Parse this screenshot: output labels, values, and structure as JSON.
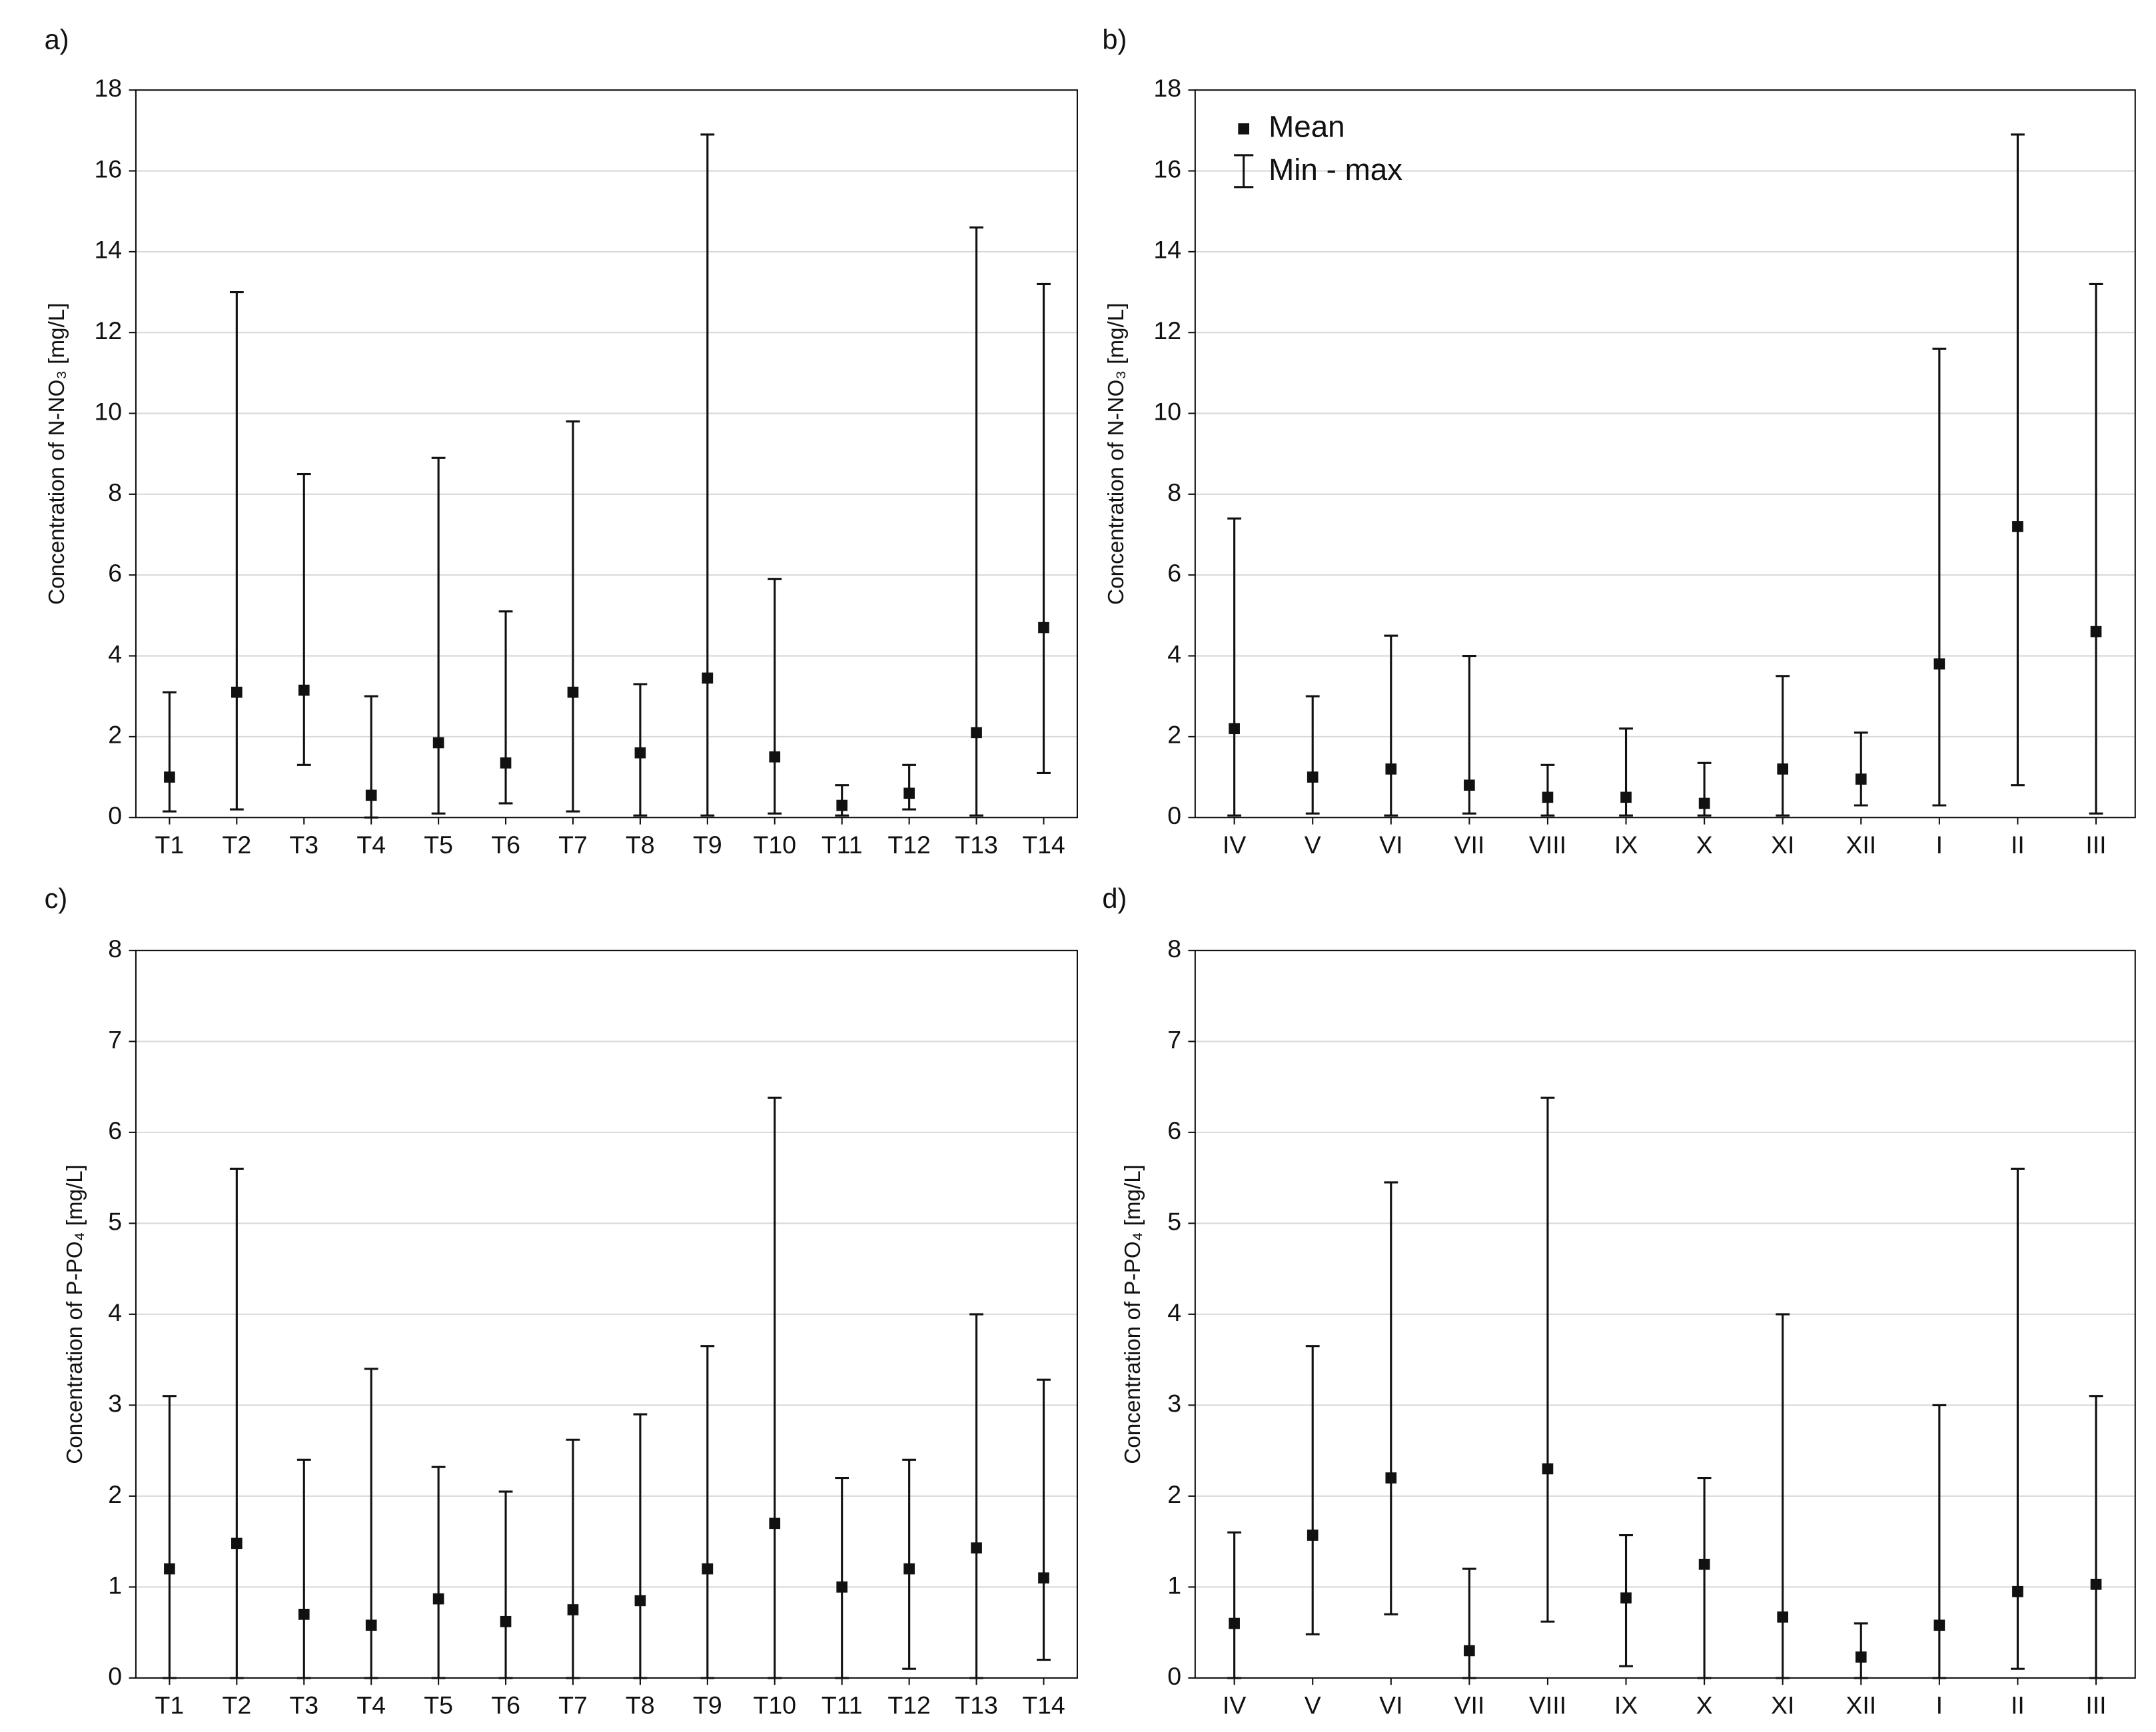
{
  "chart_data": [
    {
      "type": "errorbar",
      "panel_label": "a)",
      "ylabel": "Concentration of N-NO₃ [mg/L]",
      "categories": [
        "T1",
        "T2",
        "T3",
        "T4",
        "T5",
        "T6",
        "T7",
        "T8",
        "T9",
        "T10",
        "T11",
        "T12",
        "T13",
        "T14"
      ],
      "values": [
        1.0,
        3.1,
        3.15,
        0.55,
        1.85,
        1.35,
        3.1,
        1.6,
        3.45,
        1.5,
        0.3,
        0.6,
        2.1,
        4.7
      ],
      "min": [
        0.15,
        0.2,
        1.3,
        0,
        0.1,
        0.35,
        0.15,
        0.05,
        0.05,
        0.1,
        0.05,
        0.2,
        0.05,
        1.1
      ],
      "max": [
        3.1,
        13.0,
        8.5,
        3.0,
        8.9,
        5.1,
        9.8,
        3.3,
        16.9,
        5.9,
        0.8,
        1.3,
        14.6,
        13.2
      ],
      "ylim": [
        0,
        18
      ],
      "yticks": [
        0,
        2,
        4,
        6,
        8,
        10,
        12,
        14,
        16,
        18
      ],
      "grid": true,
      "color": "#111111"
    },
    {
      "type": "errorbar",
      "panel_label": "b)",
      "ylabel": "Concentration of N-NO₃ [mg/L]",
      "categories": [
        "IV",
        "V",
        "VI",
        "VII",
        "VIII",
        "IX",
        "X",
        "XI",
        "XII",
        "I",
        "II",
        "III"
      ],
      "values": [
        2.2,
        1.0,
        1.2,
        0.8,
        0.5,
        0.5,
        0.35,
        1.2,
        0.95,
        3.8,
        7.2,
        4.6
      ],
      "min": [
        0.05,
        0.1,
        0.05,
        0.1,
        0.05,
        0.05,
        0.05,
        0.05,
        0.3,
        0.3,
        0.8,
        0.1
      ],
      "max": [
        7.4,
        3.0,
        4.5,
        4.0,
        1.3,
        2.2,
        1.35,
        3.5,
        2.1,
        11.6,
        16.9,
        13.2
      ],
      "ylim": [
        0,
        18
      ],
      "yticks": [
        0,
        2,
        4,
        6,
        8,
        10,
        12,
        14,
        16,
        18
      ],
      "grid": true,
      "color": "#111111",
      "legend": "upper left",
      "legend_labels": {
        "mean": "Mean",
        "range": "Min - max"
      }
    },
    {
      "type": "errorbar",
      "panel_label": "c)",
      "ylabel": "Concentration of P-PO₄ [mg/L]",
      "categories": [
        "T1",
        "T2",
        "T3",
        "T4",
        "T5",
        "T6",
        "T7",
        "T8",
        "T9",
        "T10",
        "T11",
        "T12",
        "T13",
        "T14"
      ],
      "values": [
        1.2,
        1.48,
        0.7,
        0.58,
        0.87,
        0.62,
        0.75,
        0.85,
        1.2,
        1.7,
        1.0,
        1.2,
        1.43,
        1.1
      ],
      "min": [
        0,
        0,
        0,
        0,
        0,
        0,
        0,
        0,
        0,
        0,
        0,
        0.1,
        0,
        0.2
      ],
      "max": [
        3.1,
        5.6,
        2.4,
        3.4,
        2.32,
        2.05,
        2.62,
        2.9,
        3.65,
        6.38,
        2.2,
        2.4,
        4.0,
        3.28
      ],
      "ylim": [
        0,
        8
      ],
      "yticks": [
        0,
        1,
        2,
        3,
        4,
        5,
        6,
        7,
        8
      ],
      "grid": true,
      "color": "#111111"
    },
    {
      "type": "errorbar",
      "panel_label": "d)",
      "ylabel": "Concentration of P-PO₄ [mg/L]",
      "categories": [
        "IV",
        "V",
        "VI",
        "VII",
        "VIII",
        "IX",
        "X",
        "XI",
        "XII",
        "I",
        "II",
        "III"
      ],
      "values": [
        0.6,
        1.57,
        2.2,
        0.3,
        2.3,
        0.88,
        1.25,
        0.67,
        0.23,
        0.58,
        0.95,
        1.03
      ],
      "min": [
        0,
        0.48,
        0.7,
        0,
        0.62,
        0.13,
        0,
        0,
        0,
        0,
        0.1,
        0
      ],
      "max": [
        1.6,
        3.65,
        5.45,
        1.2,
        6.38,
        1.57,
        2.2,
        4.0,
        0.6,
        3.0,
        5.6,
        3.1
      ],
      "ylim": [
        0,
        8
      ],
      "yticks": [
        0,
        1,
        2,
        3,
        4,
        5,
        6,
        7,
        8
      ],
      "grid": true,
      "color": "#111111"
    }
  ]
}
